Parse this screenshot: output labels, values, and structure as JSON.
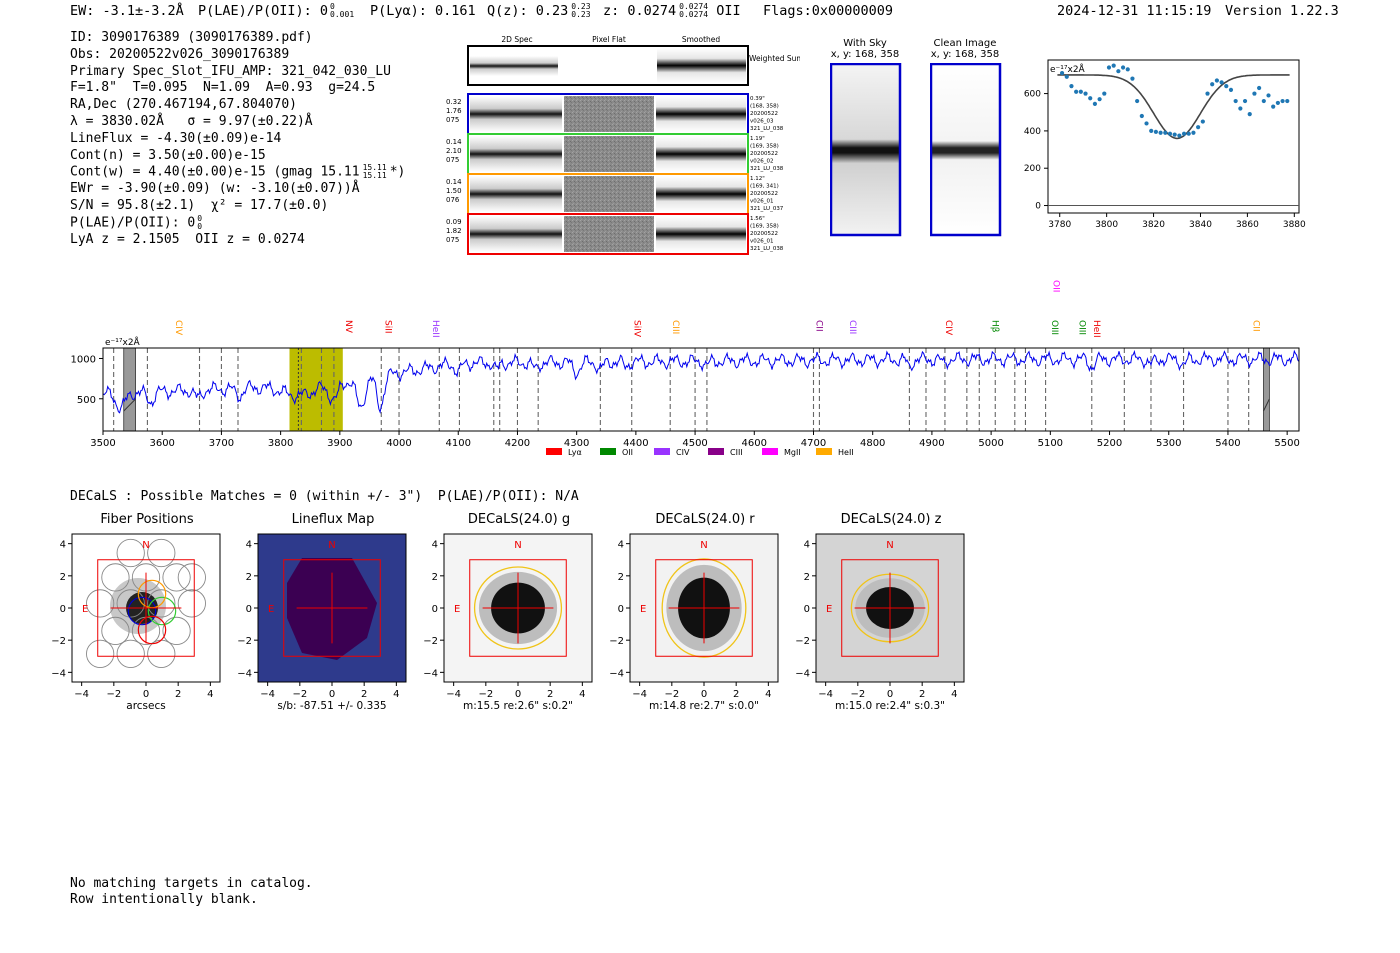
{
  "header": {
    "ew": "EW: -3.1±-3.2Å",
    "plae": "P(LAE)/P(OII): 0",
    "plae_sup": "0",
    "plae_sub": "0.001",
    "plya": "P(Lyα): 0.161",
    "qz": "Q(z): 0.23",
    "qz_sup": "0.23",
    "qz_sub": "0.23",
    "z": "z: 0.0274",
    "z_sup": "0.0274",
    "z_sub": "0.0274",
    "z_line": "OII",
    "flags": "Flags:0x00000009",
    "datetime": "2024-12-31 11:15:19",
    "version": "Version 1.22.3"
  },
  "info": {
    "id": "ID: 3090176389 (3090176389.pdf)",
    "obs": "Obs: 20200522v026_3090176389",
    "primary": "Primary Spec_Slot_IFU_AMP: 321_042_030_LU",
    "params": "F=1.8\"  T=0.095  N=1.09  A=0.93  g=24.5",
    "radec": "RA,Dec (270.467194,67.804070)",
    "lambda": "λ = 3830.02Å   σ = 9.97(±0.22)Å",
    "lineflux": "LineFlux = -4.30(±0.09)e-14",
    "contn": "Cont(n) = 3.50(±0.00)e-15",
    "contw": "Cont(w) = 4.40(±0.00)e-15 (gmag 15.11",
    "contw_sup": "15.11",
    "contw_sub": "15.11",
    "contw_end": "*)",
    "ewr": "EWr = -3.90(±0.09) (w: -3.10(±0.07))Å",
    "sn": "S/N = 95.8(±2.1)  χ² = 17.7(±0.0)",
    "plae": "P(LAE)/P(OII): 0",
    "plae_sup": "0",
    "plae_sub": "0",
    "lya": "LyA z = 2.1505  OII z = 0.0274"
  },
  "cutouts": {
    "col_2d": "2D Spec",
    "col_flat": "Pixel Flat",
    "col_smooth": "Smoothed",
    "weighted": "Weighted Sum",
    "rows": [
      {
        "w1": "0.32",
        "w2": "1.76",
        "w3": "075",
        "r1": "0.39\"",
        "r2": "(168, 358)",
        "r3": "20200522",
        "r4": "v026_03",
        "r5": "321_LU_038",
        "color": "#0000cc"
      },
      {
        "w1": "0.14",
        "w2": "2.10",
        "w3": "075",
        "r1": "1.19\"",
        "r2": "(169, 358)",
        "r3": "20200522",
        "r4": "v026_02",
        "r5": "321_LU_038",
        "color": "#33cc33"
      },
      {
        "w1": "0.14",
        "w2": "1.50",
        "w3": "076",
        "r1": "1.12\"",
        "r2": "(169, 341)",
        "r3": "20200522",
        "r4": "v026_01",
        "r5": "321_LU_037",
        "color": "#ff9900"
      },
      {
        "w1": "0.09",
        "w2": "1.82",
        "w3": "075",
        "r1": "1.56\"",
        "r2": "(169, 358)",
        "r3": "20200522",
        "r4": "v026_01",
        "r5": "321_LU_038",
        "color": "#ee0000"
      }
    ]
  },
  "sky": {
    "with_sky": "With Sky",
    "with_sky_xy": "x, y: 168, 358",
    "clean": "Clean Image",
    "clean_xy": "x, y: 168, 358"
  },
  "zoom_chart": {
    "type": "scatter",
    "ylabel_unit": "e⁻¹⁷x2Å",
    "xlim": [
      3775,
      3882
    ],
    "ylim": [
      -40,
      780
    ],
    "xticks": [
      3780,
      3800,
      3820,
      3840,
      3860,
      3880
    ],
    "yticks": [
      0,
      200,
      400,
      600
    ],
    "points_x": [
      3781,
      3783,
      3785,
      3787,
      3789,
      3791,
      3793,
      3795,
      3797,
      3799,
      3801,
      3803,
      3805,
      3807,
      3809,
      3811,
      3813,
      3815,
      3817,
      3819,
      3821,
      3823,
      3825,
      3827,
      3829,
      3831,
      3833,
      3835,
      3837,
      3839,
      3841,
      3843,
      3845,
      3847,
      3849,
      3851,
      3853,
      3855,
      3857,
      3859,
      3861,
      3863,
      3865,
      3867,
      3869,
      3871,
      3873,
      3875,
      3877
    ],
    "points_y": [
      710,
      690,
      640,
      610,
      610,
      600,
      575,
      545,
      570,
      600,
      740,
      750,
      720,
      740,
      730,
      680,
      560,
      480,
      440,
      400,
      395,
      390,
      390,
      385,
      380,
      375,
      385,
      385,
      390,
      420,
      450,
      600,
      650,
      670,
      660,
      640,
      620,
      560,
      520,
      560,
      490,
      600,
      630,
      560,
      590,
      530,
      550,
      560,
      560
    ],
    "fit_amp": -340,
    "fit_center": 3830.02,
    "fit_sigma": 9.97,
    "fit_base": 700
  },
  "spectrum": {
    "type": "line",
    "unit": "e⁻¹⁷x2Å",
    "xlim": [
      3500,
      5520
    ],
    "ylim": [
      100,
      1130
    ],
    "xticks": [
      3500,
      3600,
      3700,
      3800,
      3900,
      4000,
      4100,
      4200,
      4300,
      4400,
      4500,
      4600,
      4700,
      4800,
      4900,
      5000,
      5100,
      5200,
      5300,
      5400,
      5500
    ],
    "yticks": [
      500,
      1000
    ],
    "highlight": [
      3815,
      3905
    ],
    "highlight_center": 3830,
    "masked": [
      [
        3535,
        3555
      ],
      [
        5460,
        5470
      ]
    ],
    "dashed_x": [
      3518,
      3575,
      3663,
      3700,
      3728,
      3835,
      3869,
      3890,
      3970,
      4000,
      4068,
      4102,
      4160,
      4170,
      4200,
      4235,
      4340,
      4393,
      4458,
      4500,
      4520,
      4700,
      4710,
      4862,
      4890,
      4922,
      4959,
      4980,
      5007,
      5040,
      5058,
      5092,
      5170,
      5225,
      5270,
      5325,
      5400,
      5435
    ],
    "markers": [
      {
        "label": "CIV",
        "x": 3618,
        "color": "#ff9900",
        "level": 1
      },
      {
        "label": "NV",
        "x": 3905,
        "color": "#ee0000",
        "level": 1
      },
      {
        "label": "SiII",
        "x": 3972,
        "color": "#ee0000",
        "level": 1
      },
      {
        "label": "HeII",
        "x": 4052,
        "color": "#9933ff",
        "level": 1
      },
      {
        "label": "SiIV",
        "x": 4393,
        "color": "#ee0000",
        "level": 1
      },
      {
        "label": "CIII",
        "x": 4458,
        "color": "#ff9900",
        "level": 1
      },
      {
        "label": "CII",
        "x": 4700,
        "color": "#880088",
        "level": 1
      },
      {
        "label": "CIII",
        "x": 4757,
        "color": "#9933ff",
        "level": 1
      },
      {
        "label": "CIV",
        "x": 4919,
        "color": "#ee0000",
        "level": 1
      },
      {
        "label": "Hβ",
        "x": 4997,
        "color": "#008800",
        "level": 1
      },
      {
        "label": "OIII",
        "x": 5098,
        "color": "#008800",
        "level": 1
      },
      {
        "label": "OII",
        "x": 5100,
        "color": "#ff00ff",
        "level": 2
      },
      {
        "label": "OIII",
        "x": 5144,
        "color": "#008800",
        "level": 1
      },
      {
        "label": "HeII",
        "x": 5169,
        "color": "#ee0000",
        "level": 1
      },
      {
        "label": "CII",
        "x": 5438,
        "color": "#ff9900",
        "level": 1
      }
    ],
    "legend": [
      {
        "label": "Lyα",
        "color": "#ff0000"
      },
      {
        "label": "OII",
        "color": "#008800"
      },
      {
        "label": "CIV",
        "color": "#9933ff"
      },
      {
        "label": "CIII",
        "color": "#880088"
      },
      {
        "label": "MgII",
        "color": "#ff00ff"
      },
      {
        "label": "HeII",
        "color": "#ffaa00"
      }
    ]
  },
  "decals_line": "DECaLS : Possible Matches = 0 (within +/- 3\")  P(LAE)/P(OII): N/A",
  "panels": [
    {
      "title": "Fiber Positions",
      "caption": "arcsecs"
    },
    {
      "title": "Lineflux Map",
      "caption": "s/b: -87.51 +/- 0.335"
    },
    {
      "title": "DECaLS(24.0) g",
      "caption": "m:15.5  re:2.6\"  s:0.2\""
    },
    {
      "title": "DECaLS(24.0) r",
      "caption": "m:14.8  re:2.7\"  s:0.0\""
    },
    {
      "title": "DECaLS(24.0) z",
      "caption": "m:15.0  re:2.4\"  s:0.3\""
    }
  ],
  "panel_axis": {
    "ticks": [
      "−4",
      "−2",
      "0",
      "2",
      "4"
    ],
    "north": "N",
    "east": "E"
  },
  "footer": {
    "line1": "No matching targets in catalog.",
    "line2": "Row intentionally blank."
  }
}
